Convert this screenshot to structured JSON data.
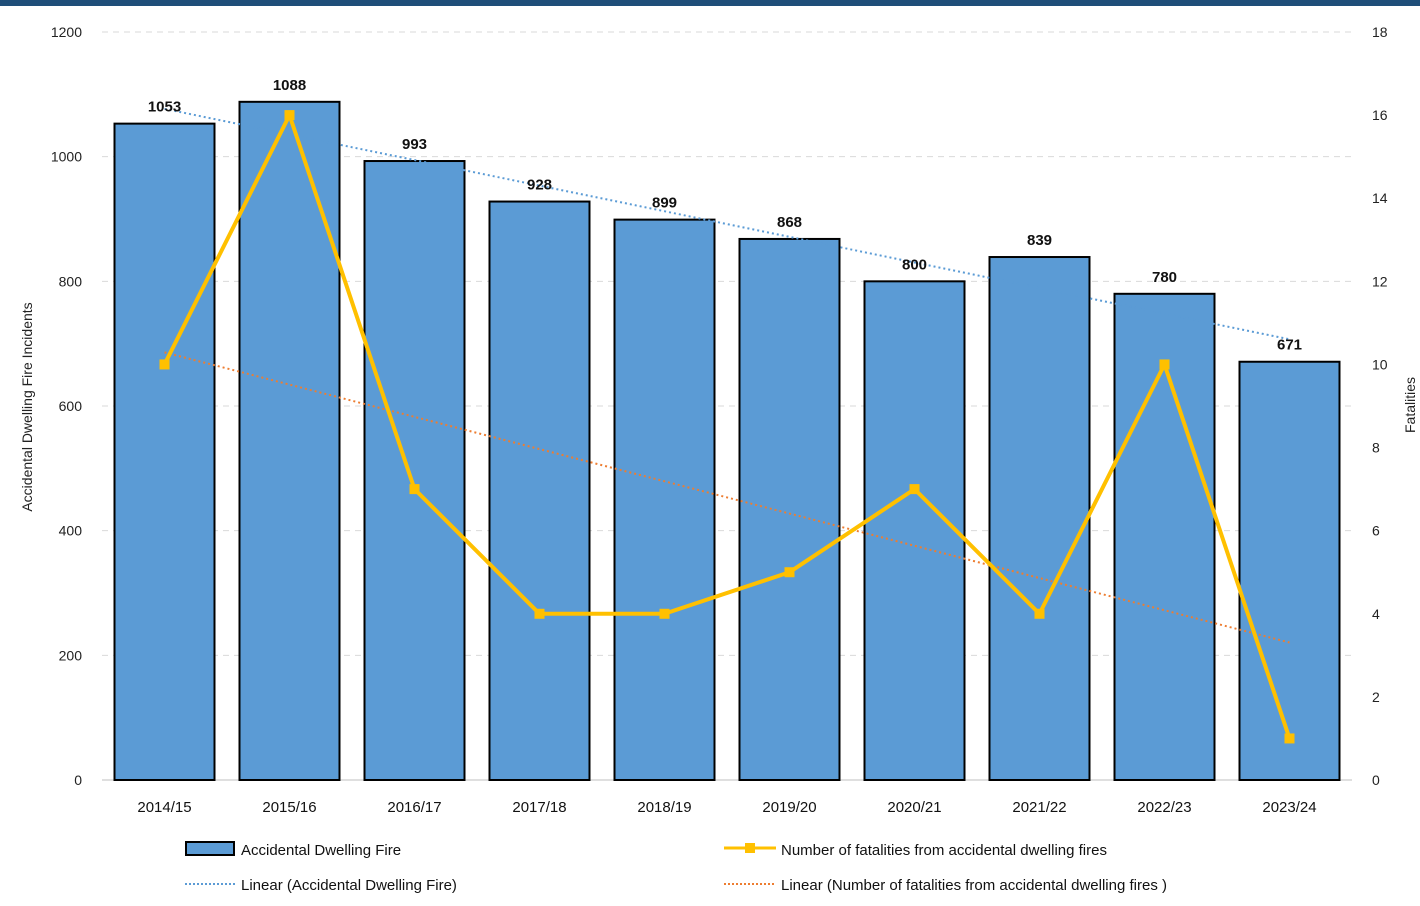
{
  "chart_data": {
    "type": "bar",
    "categories": [
      "2014/15",
      "2015/16",
      "2016/17",
      "2017/18",
      "2018/19",
      "2019/20",
      "2020/21",
      "2021/22",
      "2022/23",
      "2023/24"
    ],
    "series": [
      {
        "name": "Accidental Dwelling Fire",
        "type": "bar",
        "axis": "left",
        "color": "#5b9bd5",
        "values": [
          1053,
          1088,
          993,
          928,
          899,
          868,
          800,
          839,
          780,
          671
        ]
      },
      {
        "name": "Number of fatalities from accidental dwelling fires",
        "type": "line",
        "axis": "right",
        "color": "#ffc000",
        "values": [
          10,
          16,
          7,
          4,
          4,
          5,
          7,
          4,
          10,
          1
        ]
      }
    ],
    "trendlines": [
      {
        "name": "Linear (Accidental Dwelling Fire)",
        "of": "Accidental Dwelling Fire",
        "color": "#5b9bd5",
        "style": "dotted"
      },
      {
        "name": "Linear (Number of fatalities from accidental dwelling fires )",
        "of": "Number of fatalities from accidental dwelling fires",
        "color": "#ed7d31",
        "style": "dotted"
      }
    ],
    "ylabel": "Accidental Dwelling Fire Incidents",
    "y2label": "Fatalities",
    "ylim": [
      0,
      1200
    ],
    "y2lim": [
      0,
      18
    ],
    "yticks": [
      "0",
      "200",
      "400",
      "600",
      "800",
      "1000",
      "1200"
    ],
    "y2ticks": [
      "0",
      "2",
      "4",
      "6",
      "8",
      "10",
      "12",
      "14",
      "16",
      "18"
    ],
    "grid": true,
    "legend_position": "bottom"
  }
}
